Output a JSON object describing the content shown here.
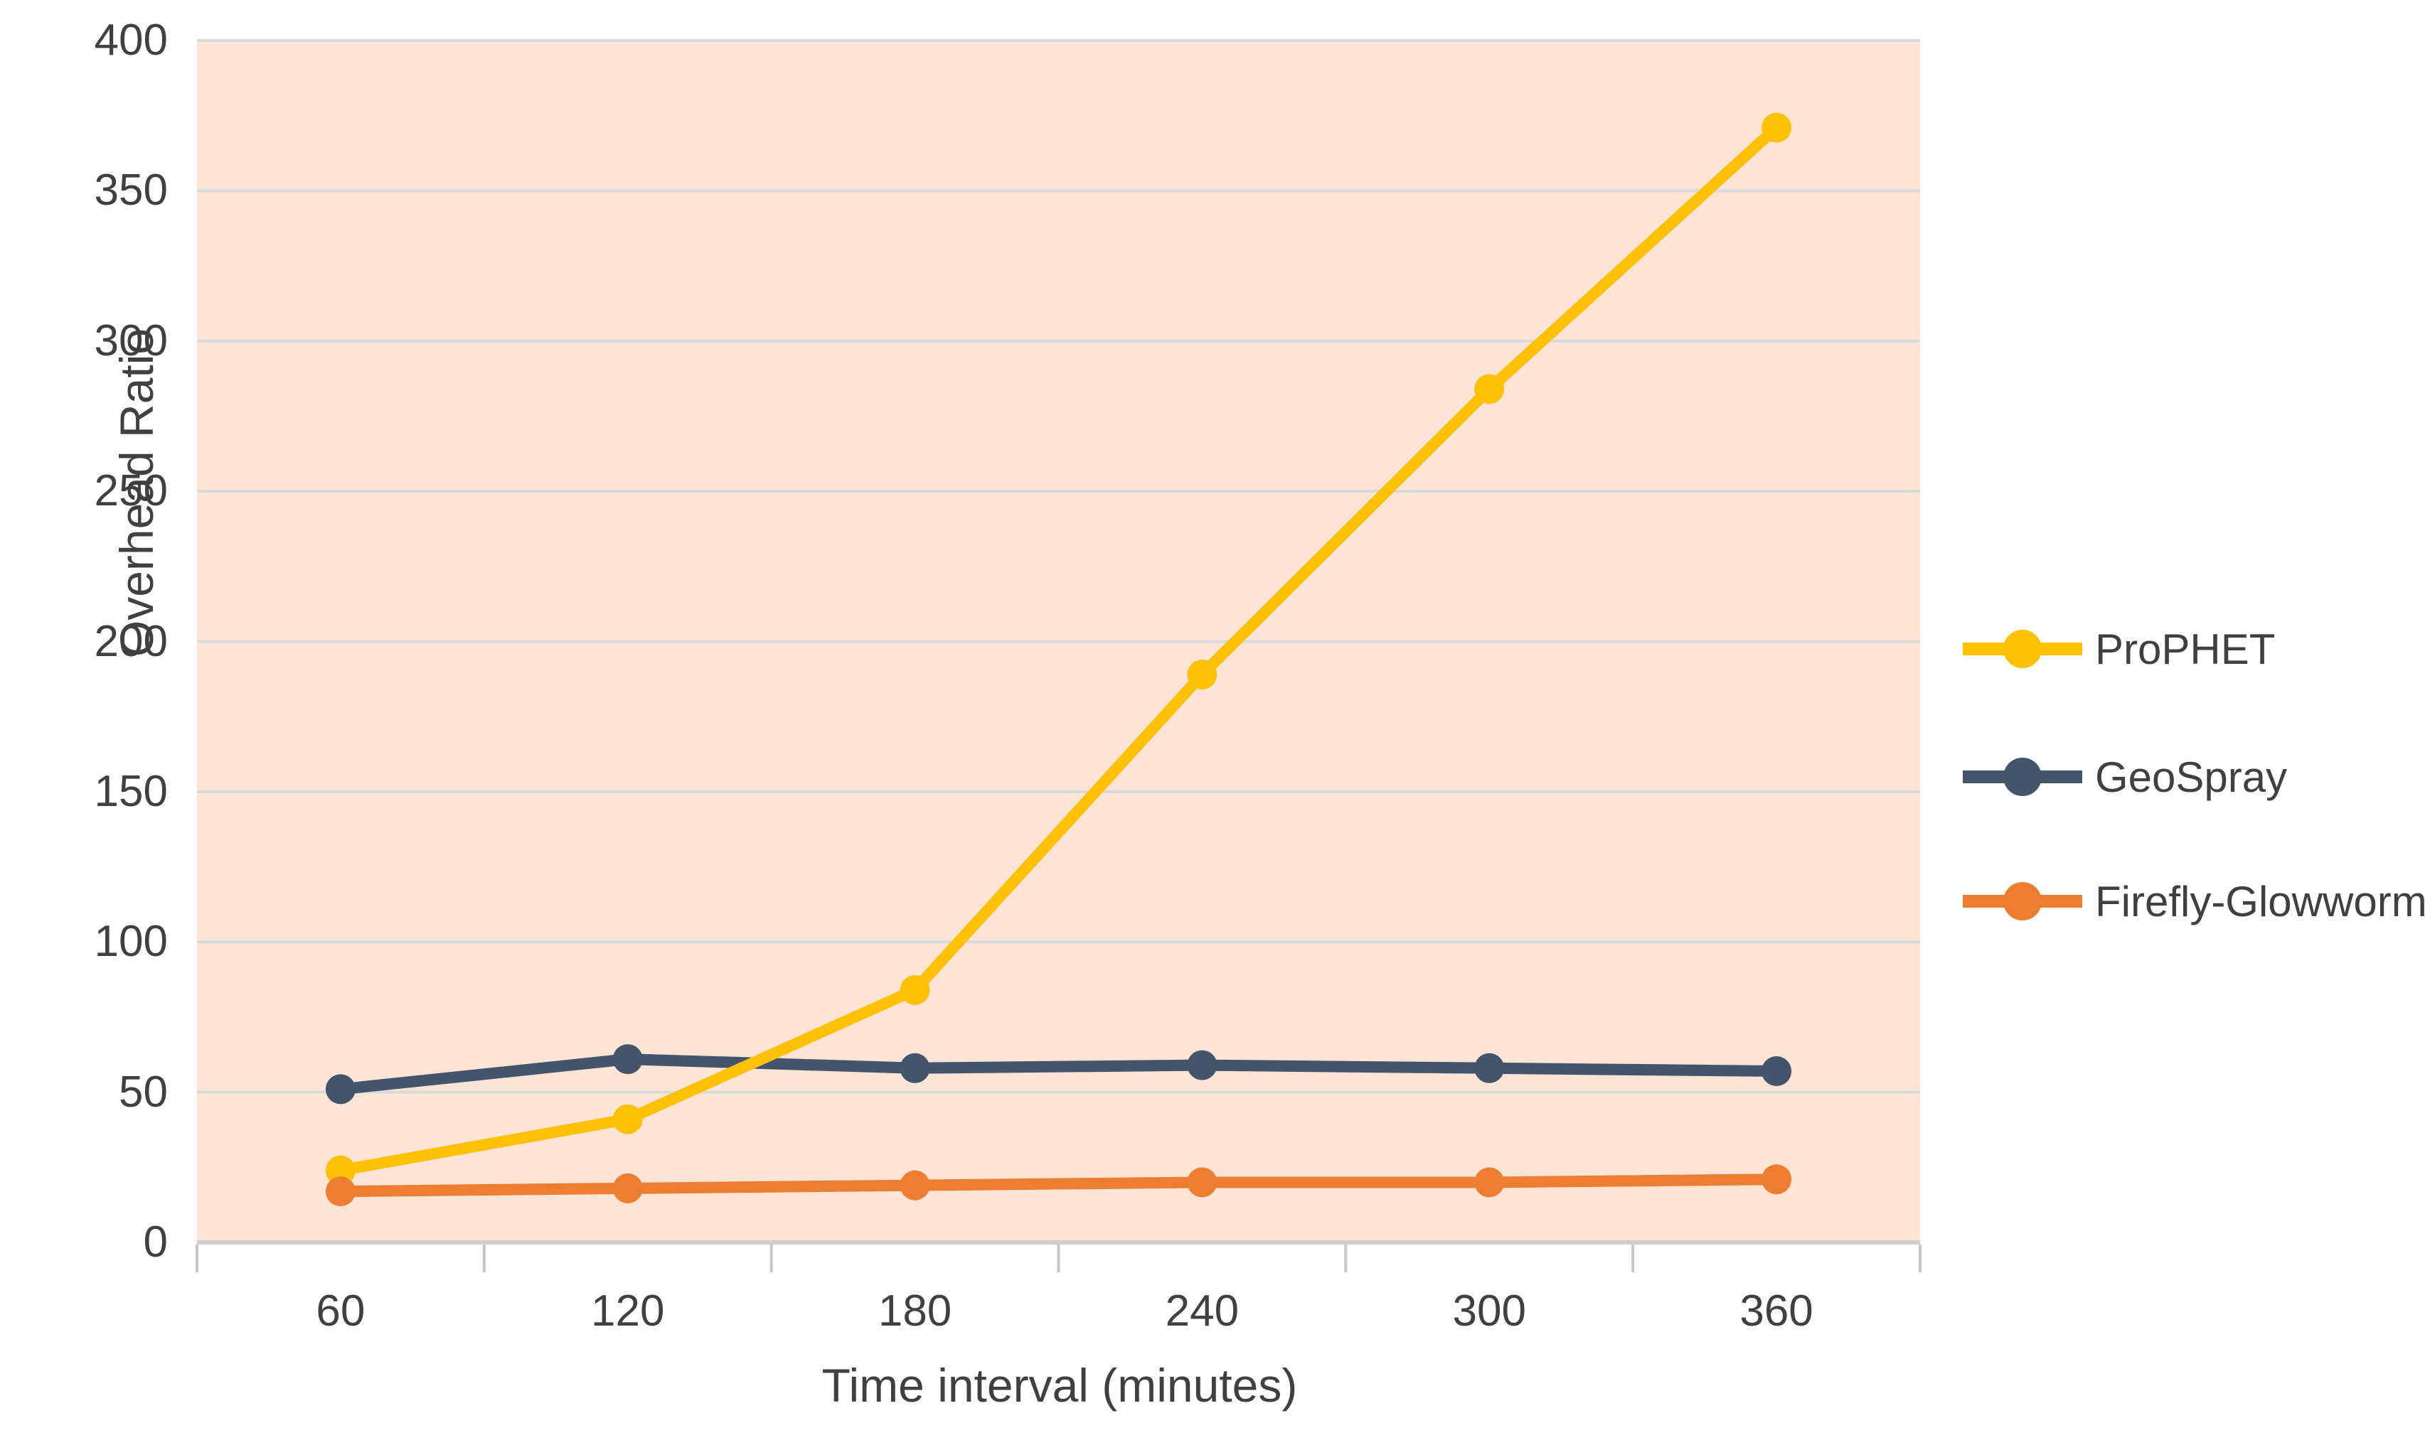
{
  "chart_data": {
    "type": "line",
    "title": "",
    "xlabel": "Time interval (minutes)",
    "ylabel": "Overhead Ratio",
    "categories": [
      60,
      120,
      180,
      240,
      300,
      360
    ],
    "x_tick_labels": [
      "60",
      "120",
      "180",
      "240",
      "300",
      "360"
    ],
    "series": [
      {
        "name": "ProPHET",
        "color": "#FFC008",
        "values": [
          24,
          41,
          84,
          189,
          284,
          371
        ]
      },
      {
        "name": "GeoSpray",
        "color": "#44546A",
        "values": [
          51,
          61,
          58,
          59,
          58,
          57
        ]
      },
      {
        "name": "Firefly-Glowworm",
        "color": "#ED7D31",
        "values": [
          17,
          18,
          19,
          20,
          20,
          21
        ]
      }
    ],
    "y_axis": {
      "min": 0,
      "max": 400,
      "step": 50,
      "tick_labels": [
        "0",
        "50",
        "100",
        "150",
        "200",
        "250",
        "300",
        "350",
        "400"
      ]
    },
    "legend_position": "right",
    "grid": true,
    "colors": {
      "plot_background": "#FCE4D6",
      "gridline": "#D9D9D9",
      "axis_line": "#CFCFCF",
      "tick_mark": "#C6C6C6",
      "text": "#404040"
    }
  }
}
